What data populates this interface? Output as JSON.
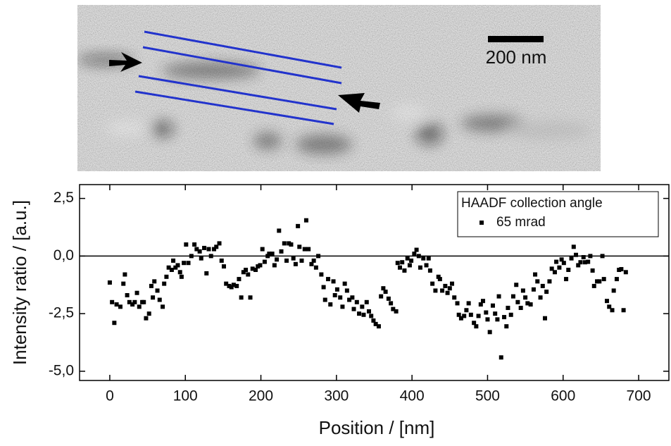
{
  "image": {
    "scale_bar_label": "200 nm"
  },
  "chart_data": {
    "type": "scatter",
    "xlabel": "Position / [nm]",
    "ylabel": "Intensity ratio / [a.u.]",
    "xlim": [
      -40,
      740
    ],
    "xticks": [
      0,
      100,
      200,
      300,
      400,
      500,
      600,
      700
    ],
    "ylim": [
      -5.4,
      3.1
    ],
    "yticks": [
      {
        "value": -5,
        "label": "-5,0"
      },
      {
        "value": -2.5,
        "label": "-2,5"
      },
      {
        "value": 0,
        "label": "0,0"
      },
      {
        "value": 2.5,
        "label": "2,5"
      }
    ],
    "reference_line": 0,
    "legend": {
      "title": "HAADF collection angle",
      "position": "upper right"
    },
    "series": [
      {
        "name": "65 mrad",
        "color": "#000000",
        "x": [
          0,
          3,
          6,
          9,
          14,
          18,
          20,
          23,
          26,
          30,
          33,
          36,
          39,
          43,
          45,
          48,
          52,
          55,
          57,
          59,
          63,
          66,
          70,
          72,
          75,
          78,
          82,
          84,
          87,
          90,
          93,
          95,
          98,
          101,
          104,
          108,
          112,
          115,
          119,
          121,
          125,
          128,
          131,
          134,
          138,
          141,
          145,
          148,
          151,
          154,
          158,
          161,
          164,
          168,
          171,
          174,
          177,
          180,
          183,
          186,
          189,
          193,
          196,
          199,
          202,
          205,
          209,
          211,
          215,
          218,
          221,
          224,
          227,
          231,
          234,
          237,
          240,
          243,
          246,
          249,
          251,
          254,
          258,
          260,
          263,
          267,
          270,
          273,
          276,
          280,
          283,
          285,
          289,
          292,
          296,
          298,
          301,
          305,
          308,
          311,
          314,
          317,
          321,
          323,
          327,
          330,
          334,
          336,
          340,
          343,
          346,
          349,
          352,
          356,
          359,
          362,
          365,
          369,
          372,
          375,
          379,
          381,
          384,
          387,
          390,
          394,
          397,
          399,
          403,
          406,
          409,
          411,
          415,
          419,
          422,
          424,
          427,
          431,
          435,
          437,
          440,
          444,
          447,
          450,
          453,
          456,
          460,
          462,
          465,
          469,
          472,
          475,
          478,
          482,
          485,
          488,
          491,
          494,
          498,
          500,
          503,
          507,
          510,
          513,
          515,
          518,
          522,
          525,
          527,
          531,
          534,
          538,
          540,
          544,
          547,
          550,
          553,
          557,
          561,
          563,
          566,
          570,
          573,
          576,
          578,
          582,
          585,
          589,
          591,
          595,
          598,
          601,
          604,
          607,
          611,
          614,
          617,
          620,
          623,
          627,
          629,
          633,
          636,
          639,
          641,
          645,
          648,
          652,
          654,
          658,
          661,
          665,
          667,
          671,
          674,
          677,
          680,
          683
        ],
        "values": [
          -1.15,
          -2.0,
          -2.9,
          -2.1,
          -2.2,
          -1.2,
          -0.8,
          -1.7,
          -2.0,
          -2.1,
          -2.0,
          -1.6,
          -2.2,
          -2.0,
          -2.0,
          -2.7,
          -2.5,
          -1.3,
          -1.8,
          -1.1,
          -1.5,
          -1.9,
          -2.2,
          -1.2,
          -0.9,
          -0.5,
          -0.6,
          -0.2,
          -0.5,
          -0.4,
          -0.7,
          -0.9,
          -0.3,
          0.5,
          -0.3,
          0.0,
          0.5,
          0.3,
          0.2,
          -0.1,
          0.35,
          -0.75,
          0.3,
          0.0,
          0.3,
          0.4,
          0.55,
          -0.2,
          -0.45,
          -1.2,
          -1.3,
          -1.35,
          -1.25,
          -1.3,
          -1.0,
          -1.8,
          -0.7,
          -0.6,
          -0.8,
          -1.8,
          -0.55,
          -0.6,
          -0.45,
          -0.4,
          0.3,
          -0.25,
          0.0,
          0.1,
          0.1,
          -0.4,
          -0.15,
          1.1,
          0.2,
          0.55,
          -0.2,
          0.55,
          0.5,
          -0.1,
          -0.35,
          1.3,
          0.4,
          -0.2,
          0.3,
          1.55,
          0.3,
          -0.35,
          -0.2,
          -0.5,
          0.0,
          -0.8,
          -1.35,
          -1.9,
          -1.0,
          -2.1,
          -1.1,
          -1.7,
          -1.45,
          -1.8,
          -2.2,
          -1.2,
          -1.5,
          -1.9,
          -1.8,
          -2.3,
          -2.0,
          -2.5,
          -2.2,
          -2.55,
          -2.0,
          -2.4,
          -2.6,
          -2.8,
          -2.95,
          -3.05,
          -1.75,
          -1.4,
          -1.55,
          -1.85,
          -2.05,
          -2.3,
          -2.4,
          -0.3,
          -0.5,
          -0.27,
          -0.63,
          -0.1,
          -0.4,
          -0.2,
          0.1,
          0.27,
          0.0,
          -0.5,
          -0.1,
          -0.4,
          -0.1,
          -0.63,
          -1.2,
          -1.5,
          -0.9,
          -1.0,
          -1.5,
          -1.3,
          -1.6,
          -1.4,
          -1.2,
          -1.8,
          -2.05,
          -2.55,
          -2.7,
          -2.6,
          -2.35,
          -2.05,
          -2.55,
          -2.9,
          -3.05,
          -2.6,
          -2.1,
          -1.95,
          -2.45,
          -2.75,
          -3.3,
          -2.15,
          -2.5,
          -2.75,
          -1.75,
          -4.4,
          -2.65,
          -3.05,
          -2.25,
          -2.55,
          -1.75,
          -1.25,
          -2.0,
          -2.25,
          -1.5,
          -1.8,
          -2.05,
          -2.1,
          -1.45,
          -0.8,
          -1.1,
          -1.8,
          -1.3,
          -2.7,
          -1.55,
          -1.1,
          -0.55,
          -0.7,
          -0.25,
          -0.5,
          -0.15,
          -0.3,
          -1.0,
          -0.6,
          -0.1,
          0.4,
          0.05,
          -0.4,
          -0.27,
          -0.05,
          -0.27,
          -0.25,
          0.0,
          -0.63,
          -1.3,
          -1.1,
          -1.1,
          0.0,
          -1.0,
          -1.95,
          -2.2,
          -2.35,
          -1.5,
          -1.0,
          -0.6,
          -0.57,
          -2.35,
          -0.7
        ]
      }
    ]
  }
}
